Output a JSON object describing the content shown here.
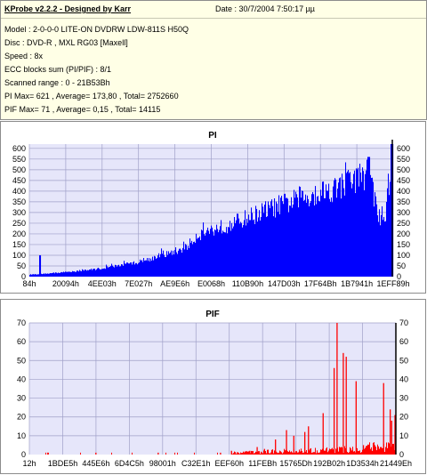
{
  "info": {
    "title": "KProbe v2.2.2 - Designed by Karr",
    "date": "Date : 30/7/2004 7:50:17 µµ",
    "lines": [
      "Model : 2-0-0-0 LITE-ON DVDRW LDW-811S   H50Q",
      "Disc : DVD-R , MXL RG03 [Maxell]",
      "Speed : 8x",
      "ECC blocks sum (PI/PIF) : 8/1",
      "Scanned range : 0 - 21B53Bh",
      "PI Max= 621 , Average= 173,80 , Total= 2752660",
      "PIF Max= 71 , Average= 0,15 , Total= 14115"
    ]
  },
  "chart_data": [
    {
      "type": "bar",
      "title": "PI",
      "ylim": [
        0,
        620
      ],
      "yticks": [
        0,
        50,
        100,
        150,
        200,
        250,
        300,
        350,
        400,
        450,
        500,
        550,
        600
      ],
      "x_tick_labels": [
        "84h",
        "20094h",
        "4EE03h",
        "7E027h",
        "AE9E6h",
        "E0068h",
        "110B90h",
        "147D03h",
        "17F64Bh",
        "1B7941h",
        "1EFF89h"
      ],
      "grid": true,
      "colors": {
        "bars": "#0000ff",
        "plot_bg": "#e6e6fa",
        "grid": "#a0a0c8",
        "marker": "#000000"
      },
      "profile": [
        [
          0,
          10
        ],
        [
          2,
          12
        ],
        [
          5,
          15
        ],
        [
          10,
          22
        ],
        [
          15,
          30
        ],
        [
          20,
          40
        ],
        [
          25,
          55
        ],
        [
          30,
          70
        ],
        [
          34,
          90
        ],
        [
          38,
          110
        ],
        [
          43,
          140
        ],
        [
          45,
          175
        ],
        [
          46,
          200
        ],
        [
          49,
          220
        ],
        [
          55,
          250
        ],
        [
          60,
          285
        ],
        [
          65,
          320
        ],
        [
          70,
          350
        ],
        [
          75,
          380
        ],
        [
          80,
          410
        ],
        [
          85,
          430
        ],
        [
          88,
          460
        ],
        [
          91,
          480
        ],
        [
          93,
          500
        ],
        [
          94,
          480
        ],
        [
          95,
          370
        ],
        [
          96,
          280
        ],
        [
          98,
          310
        ],
        [
          99.3,
          500
        ],
        [
          100,
          600
        ]
      ],
      "peaks": [
        [
          3,
          100
        ],
        [
          93.3,
          560
        ],
        [
          99.6,
          621
        ]
      ]
    },
    {
      "type": "bar",
      "title": "PIF",
      "ylim": [
        0,
        70
      ],
      "yticks": [
        0,
        10,
        20,
        30,
        40,
        50,
        60,
        70
      ],
      "x_tick_labels": [
        "12h",
        "1BDE5h",
        "445E6h",
        "6D4C5h",
        "98001h",
        "C32E1h",
        "EEF60h",
        "11FEBh",
        "15765Dh",
        "192B02h",
        "1D3534h",
        "21449Eh"
      ],
      "grid": true,
      "colors": {
        "bars": "#ff0000",
        "plot_bg": "#e6e6fa",
        "grid": "#a0a0c8",
        "marker": "#000000"
      },
      "spikes": [
        [
          5,
          1
        ],
        [
          18,
          1
        ],
        [
          35,
          1
        ],
        [
          52,
          1
        ],
        [
          55,
          2
        ],
        [
          60,
          2
        ],
        [
          62,
          4
        ],
        [
          64,
          3
        ],
        [
          67,
          8
        ],
        [
          70,
          13
        ],
        [
          72,
          10
        ],
        [
          75,
          12
        ],
        [
          76,
          15
        ],
        [
          80,
          22
        ],
        [
          83,
          46
        ],
        [
          83.8,
          71
        ],
        [
          85.5,
          54
        ],
        [
          86.3,
          52
        ],
        [
          89,
          39
        ],
        [
          91,
          5
        ],
        [
          93,
          3
        ],
        [
          96.5,
          38
        ],
        [
          98.3,
          24
        ],
        [
          98.7,
          18
        ],
        [
          99.6,
          21
        ]
      ]
    }
  ]
}
